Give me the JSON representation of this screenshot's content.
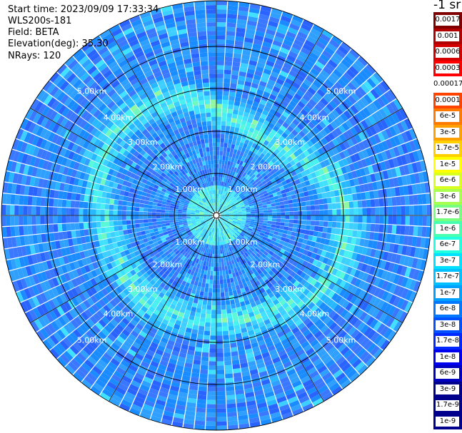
{
  "info": {
    "start_time": "Start time: 2023/09/09 17:33:34",
    "instrument": "WLS200s-181",
    "field": "Field: BETA",
    "elevation": "Elevation(deg): 35.30",
    "nrays": "NRays: 120"
  },
  "colorbar": {
    "unit": "-1 sr",
    "colors": [
      "#800000",
      "#b00000",
      "#d40000",
      "#ff0000",
      "#ffffff",
      "#ff4400",
      "#ff7a00",
      "#ffa000",
      "#ffd000",
      "#ffff00",
      "#d8ff20",
      "#a8ff50",
      "#78ff80",
      "#48ffb0",
      "#20ffe0",
      "#00e0ff",
      "#00c0ff",
      "#00a0ff",
      "#0078ff",
      "#0050ff",
      "#0028ff",
      "#0000f0",
      "#0000c0",
      "#00008c"
    ],
    "labels": [
      "0.0017",
      "0.001",
      "0.0006",
      "0.0003",
      "0.00017",
      "0.0001",
      "6e-5",
      "3e-5",
      "1.7e-5",
      "1e-5",
      "6e-6",
      "3e-6",
      "1.7e-6",
      "1e-6",
      "6e-7",
      "3e-7",
      "1.7e-7",
      "1e-7",
      "6e-8",
      "3e-8",
      "1.7e-8",
      "1e-8",
      "6e-9",
      "3e-9",
      "1.7e-9",
      "1e-9"
    ]
  },
  "chart_data": {
    "type": "heatmap",
    "projection": "polar",
    "field": "BETA",
    "elevation_deg": 35.3,
    "n_rays": 120,
    "range_rings_km": [
      1,
      2,
      3,
      4,
      5
    ],
    "range_ring_labels": [
      "1.00km",
      "2.00km",
      "3.00km",
      "4.00km",
      "5.00km"
    ],
    "max_range_km": 5.0,
    "color_scale": "log",
    "value_range": [
      1e-09,
      0.0017
    ],
    "dominant_value": "3e-8 to 1e-7",
    "annulus_feature_value": "1.7e-7 to 1e-6"
  }
}
